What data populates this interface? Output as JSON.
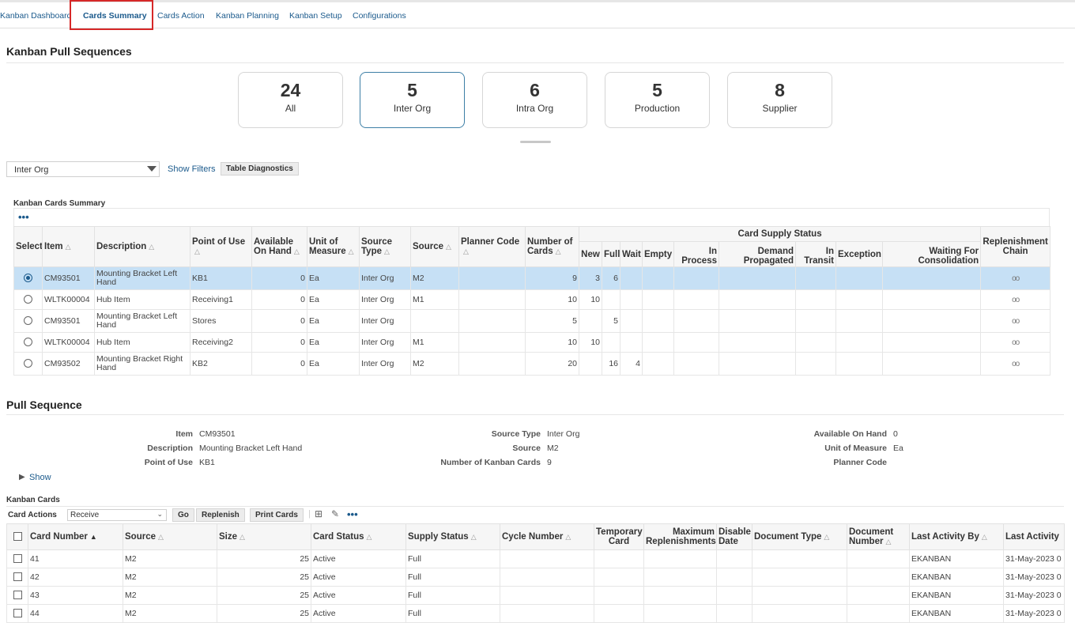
{
  "tabs": [
    {
      "label": "Kanban Dashboard"
    },
    {
      "label": "Cards Summary"
    },
    {
      "label": "Cards Action"
    },
    {
      "label": "Kanban Planning"
    },
    {
      "label": "Kanban Setup"
    },
    {
      "label": "Configurations"
    }
  ],
  "active_tab": "Cards Summary",
  "colors": {
    "accent": "#1b5a8c",
    "highlight": "#d62828",
    "selected_row": "#c6e0f5"
  },
  "page": {
    "title": "Kanban Pull Sequences",
    "tiles": [
      {
        "count": "24",
        "label": "All"
      },
      {
        "count": "5",
        "label": "Inter Org"
      },
      {
        "count": "6",
        "label": "Intra Org"
      },
      {
        "count": "5",
        "label": "Production"
      },
      {
        "count": "8",
        "label": "Supplier"
      }
    ]
  },
  "filters": {
    "selected": "Inter Org",
    "show_filters": "Show Filters",
    "table_diagnostics": "Table Diagnostics"
  },
  "summary": {
    "title": "Kanban Cards Summary",
    "more": "•••",
    "headers": {
      "select": "Select",
      "item": "Item",
      "description": "Description",
      "point_of_use": "Point of Use",
      "available_on_hand": "Available On Hand",
      "unit_of_measure": "Unit of Measure",
      "source_type": "Source Type",
      "source": "Source",
      "planner_code": "Planner Code",
      "number_of_cards": "Number of Cards",
      "card_supply_status": "Card Supply Status",
      "new": "New",
      "full": "Full",
      "wait": "Wait",
      "empty": "Empty",
      "in_process": "In Process",
      "demand_propagated": "Demand Propagated",
      "in_transit": "In Transit",
      "exception": "Exception",
      "waiting_for_consolidation": "Waiting For Consolidation",
      "replenishment_chain": "Replenishment Chain"
    },
    "rows": [
      {
        "item": "CM93501",
        "description": "Mounting Bracket Left Hand",
        "point_of_use": "KB1",
        "available": "0",
        "uom": "Ea",
        "source_type": "Inter Org",
        "source": "M2",
        "planner": "",
        "cards": "9",
        "new": "3",
        "full": "6",
        "wait": "",
        "chain": "oo"
      },
      {
        "item": "WLTK00004",
        "description": "Hub Item",
        "point_of_use": "Receiving1",
        "available": "0",
        "uom": "Ea",
        "source_type": "Inter Org",
        "source": "M1",
        "planner": "",
        "cards": "10",
        "new": "10",
        "full": "",
        "wait": "",
        "chain": "oo"
      },
      {
        "item": "CM93501",
        "description": "Mounting Bracket Left Hand",
        "point_of_use": "Stores",
        "available": "0",
        "uom": "Ea",
        "source_type": "Inter Org",
        "source": "",
        "planner": "",
        "cards": "5",
        "new": "",
        "full": "5",
        "wait": "",
        "chain": "oo"
      },
      {
        "item": "WLTK00004",
        "description": "Hub Item",
        "point_of_use": "Receiving2",
        "available": "0",
        "uom": "Ea",
        "source_type": "Inter Org",
        "source": "M1",
        "planner": "",
        "cards": "10",
        "new": "10",
        "full": "",
        "wait": "",
        "chain": "oo"
      },
      {
        "item": "CM93502",
        "description": "Mounting Bracket Right Hand",
        "point_of_use": "KB2",
        "available": "0",
        "uom": "Ea",
        "source_type": "Inter Org",
        "source": "M2",
        "planner": "",
        "cards": "20",
        "new": "",
        "full": "16",
        "wait": "4",
        "chain": "oo"
      }
    ]
  },
  "pull_sequence": {
    "title": "Pull Sequence",
    "fields": {
      "item_label": "Item",
      "item": "CM93501",
      "description_label": "Description",
      "description": "Mounting Bracket Left Hand",
      "pou_label": "Point of Use",
      "pou": "KB1",
      "source_type_label": "Source Type",
      "source_type": "Inter Org",
      "source_label": "Source",
      "source": "M2",
      "num_cards_label": "Number of Kanban Cards",
      "num_cards": "9",
      "avail_label": "Available On Hand",
      "avail": "0",
      "uom_label": "Unit of Measure",
      "uom": "Ea",
      "planner_label": "Planner Code",
      "planner": ""
    },
    "show": "Show"
  },
  "kanban_cards": {
    "title": "Kanban Cards",
    "card_actions_label": "Card Actions",
    "card_action_value": "Receive",
    "go": "Go",
    "replenish": "Replenish",
    "print_cards": "Print Cards",
    "more": "•••",
    "headers": {
      "card_number": "Card Number",
      "source": "Source",
      "size": "Size",
      "card_status": "Card Status",
      "supply_status": "Supply Status",
      "cycle_number": "Cycle Number",
      "temporary_card": "Temporary Card",
      "max_replenishments": "Maximum Replenishments",
      "disable_date": "Disable Date",
      "document_type": "Document Type",
      "document_number": "Document Number",
      "last_activity_by": "Last Activity By",
      "last_activity": "Last Activity"
    },
    "rows": [
      {
        "card": "41",
        "source": "M2",
        "size": "25",
        "status": "Active",
        "supply": "Full",
        "by": "EKANBAN",
        "date": "31-May-2023 0"
      },
      {
        "card": "42",
        "source": "M2",
        "size": "25",
        "status": "Active",
        "supply": "Full",
        "by": "EKANBAN",
        "date": "31-May-2023 0"
      },
      {
        "card": "43",
        "source": "M2",
        "size": "25",
        "status": "Active",
        "supply": "Full",
        "by": "EKANBAN",
        "date": "31-May-2023 0"
      },
      {
        "card": "44",
        "source": "M2",
        "size": "25",
        "status": "Active",
        "supply": "Full",
        "by": "EKANBAN",
        "date": "31-May-2023 0"
      }
    ]
  }
}
